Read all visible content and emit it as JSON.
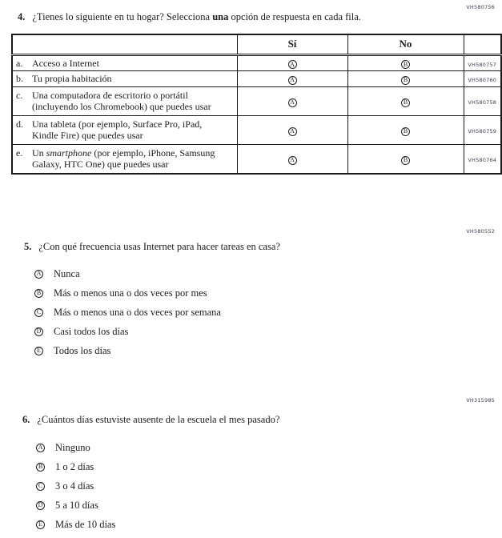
{
  "q4": {
    "number": "4.",
    "code": "VH580756",
    "text_pre": "¿Tienes lo siguiente en tu hogar? Selecciona ",
    "text_bold": "una",
    "text_post": " opción de respuesta en cada fila.",
    "table": {
      "col_yes": "Sí",
      "col_no": "No",
      "rows": [
        {
          "letter": "a.",
          "text_pre": "Acceso a Internet",
          "text_italic": "",
          "text_post": "",
          "yes_bubble": "A",
          "no_bubble": "B",
          "code": "VH580757"
        },
        {
          "letter": "b.",
          "text_pre": "Tu propia habitación",
          "text_italic": "",
          "text_post": "",
          "yes_bubble": "A",
          "no_bubble": "B",
          "code": "VH580760"
        },
        {
          "letter": "c.",
          "text_pre": "Una computadora de escritorio o portátil (incluyendo los Chromebook) que puedes usar",
          "text_italic": "",
          "text_post": "",
          "yes_bubble": "A",
          "no_bubble": "B",
          "code": "VH580758"
        },
        {
          "letter": "d.",
          "text_pre": "Una tableta (por ejemplo, Surface Pro, iPad, Kindle Fire) que puedes usar",
          "text_italic": "",
          "text_post": "",
          "yes_bubble": "A",
          "no_bubble": "B",
          "code": "VH580759"
        },
        {
          "letter": "e.",
          "text_pre": "Un ",
          "text_italic": "smartphone",
          "text_post": " (por ejemplo, iPhone, Samsung Galaxy, HTC One) que puedes usar",
          "yes_bubble": "A",
          "no_bubble": "B",
          "code": "VH580764"
        }
      ]
    }
  },
  "q5": {
    "number": "5.",
    "code": "VH580552",
    "text": "¿Con qué frecuencia usas Internet para hacer tareas en casa?",
    "options": [
      {
        "bubble": "A",
        "label": "Nunca"
      },
      {
        "bubble": "B",
        "label": "Más o menos una o dos veces por mes"
      },
      {
        "bubble": "C",
        "label": "Más o menos una o dos veces por semana"
      },
      {
        "bubble": "D",
        "label": "Casi todos los días"
      },
      {
        "bubble": "E",
        "label": "Todos los días"
      }
    ]
  },
  "q6": {
    "number": "6.",
    "code": "VH315985",
    "text": "¿Cuántos días estuviste ausente de la escuela el mes pasado?",
    "options": [
      {
        "bubble": "A",
        "label": "Ninguno"
      },
      {
        "bubble": "B",
        "label": "1 o 2 días"
      },
      {
        "bubble": "C",
        "label": "3 o 4 días"
      },
      {
        "bubble": "D",
        "label": "5 a 10 días"
      },
      {
        "bubble": "E",
        "label": "Más de 10 días"
      }
    ]
  },
  "colors": {
    "border": "#1a1a1a",
    "code_text": "#3d3d50"
  }
}
